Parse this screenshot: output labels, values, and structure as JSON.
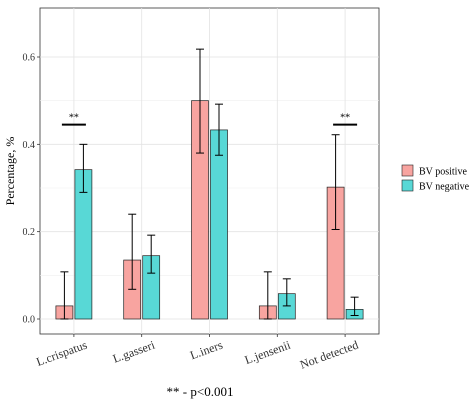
{
  "chart_data": {
    "type": "bar",
    "categories": [
      "L.crispatus",
      "L.gasseri",
      "L.iners",
      "L.jensenii",
      "Not detected"
    ],
    "ylabel": "Percentage, %",
    "ylim": [
      0,
      0.7
    ],
    "yticks": [
      "0.0",
      "0.2",
      "0.4",
      "0.6"
    ],
    "ytick_values": [
      0,
      0.2,
      0.4,
      0.6
    ],
    "grid": true,
    "legend": "right",
    "series": [
      {
        "name": "BV positive",
        "color": "#F8A4A0",
        "values": [
          0.03,
          0.135,
          0.5,
          0.03,
          0.302
        ],
        "err_low": [
          0.0,
          0.068,
          0.38,
          0.0,
          0.205
        ],
        "err_high": [
          0.108,
          0.24,
          0.618,
          0.108,
          0.422
        ]
      },
      {
        "name": "BV negative",
        "color": "#58D8D6",
        "values": [
          0.342,
          0.145,
          0.433,
          0.058,
          0.022
        ],
        "err_low": [
          0.29,
          0.105,
          0.375,
          0.03,
          0.008
        ],
        "err_high": [
          0.4,
          0.192,
          0.492,
          0.092,
          0.05
        ]
      }
    ],
    "annotations": [
      {
        "category_index": 0,
        "y": 0.445,
        "text": "**"
      },
      {
        "category_index": 4,
        "y": 0.445,
        "text": "**"
      }
    ]
  },
  "footnote": "** - p<0.001"
}
